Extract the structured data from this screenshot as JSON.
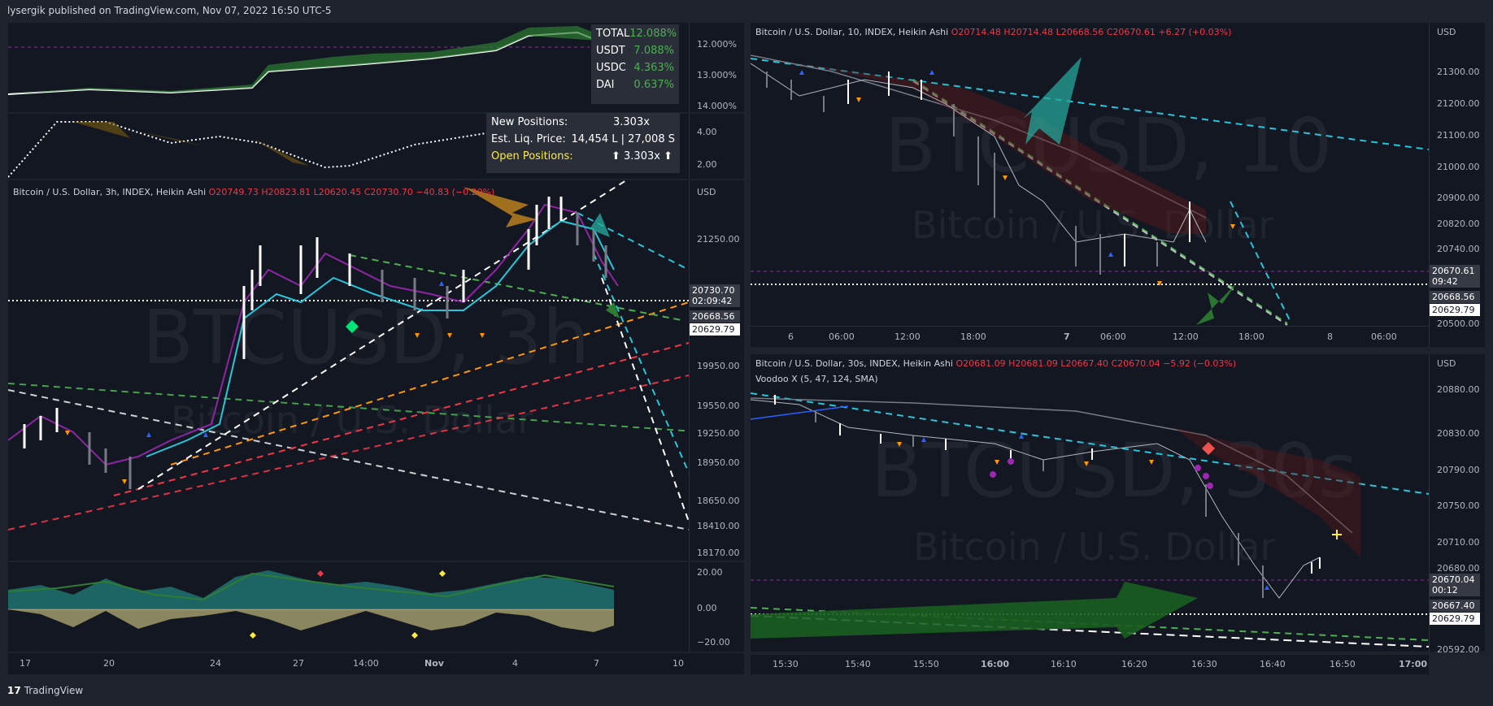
{
  "header": {
    "publisher": "lysergik published on TradingView.com, Nov 07, 2022 16:50 UTC-5"
  },
  "footer": {
    "brand": "TradingView"
  },
  "left": {
    "dominance_table": [
      {
        "name": "TOTAL",
        "value": "12.088%"
      },
      {
        "name": "USDT",
        "value": "7.088%"
      },
      {
        "name": "USDC",
        "value": "4.363%"
      },
      {
        "name": "DAI",
        "value": "0.637%"
      }
    ],
    "dominance_axis": [
      "12.000%",
      "13.000%",
      "14.000%"
    ],
    "osc_axis": [
      "4.00",
      "2.00"
    ],
    "positions": {
      "new_label": "New Positions:",
      "new_value": "3.303x",
      "liq_label": "Est. Liq. Price:",
      "liq_value": "14,454 L | 27,008 S",
      "open_label": "Open Positions:",
      "open_value": "⬆ 3.303x ⬆"
    },
    "main": {
      "title": "Bitcoin / U.S. Dollar, 3h, INDEX, Heikin Ashi",
      "o": "O20749.73",
      "h": "H20823.81",
      "l": "L20620.45",
      "c": "C20730.70",
      "chg": "−40.83 (−0.20%)",
      "currency": "USD",
      "watermark_1": "BTCUSD, 3h",
      "watermark_2": "Bitcoin / U.S. Dollar",
      "price_axis": [
        "21250.00",
        "19950.00",
        "19550.00",
        "19250.00",
        "18950.00",
        "18650.00",
        "18410.00",
        "18170.00"
      ],
      "tag_price": "20730.70",
      "tag_timer": "02:09:42",
      "tag_low": "20668.56",
      "tag_line": "20629.79"
    },
    "osc2_axis": [
      "20.00",
      "0.00",
      "−20.00"
    ],
    "time_axis": [
      "17",
      "20",
      "24",
      "27",
      "14:00",
      "Nov",
      "4",
      "7",
      "10"
    ]
  },
  "right_top": {
    "title": "Bitcoin / U.S. Dollar, 10, INDEX, Heikin Ashi",
    "o": "O20714.48",
    "h": "H20714.48",
    "l": "L20668.56",
    "c": "C20670.61",
    "chg": "+6.27 (+0.03%)",
    "currency": "USD",
    "watermark_1": "BTCUSD, 10",
    "watermark_2": "Bitcoin / U.S. Dollar",
    "price_axis": [
      "21300.00",
      "21200.00",
      "21100.00",
      "21000.00",
      "20900.00",
      "20820.00",
      "20740.00",
      "20500.00"
    ],
    "tag_price": "20670.61",
    "tag_timer": "09:42",
    "tag_low": "20668.56",
    "tag_line": "20629.79",
    "time_axis": [
      "6",
      "06:00",
      "12:00",
      "18:00",
      "7",
      "06:00",
      "12:00",
      "18:00",
      "8",
      "06:00"
    ]
  },
  "right_bottom": {
    "title": "Bitcoin / U.S. Dollar, 30s, INDEX, Heikin Ashi",
    "o": "O20681.09",
    "h": "H20681.09",
    "l": "L20667.40",
    "c": "C20670.04",
    "chg": "−5.92 (−0.03%)",
    "indicator": "Voodoo X (5, 47, 124, SMA)",
    "currency": "USD",
    "watermark_1": "BTCUSD, 30s",
    "watermark_2": "Bitcoin / U.S. Dollar",
    "price_axis": [
      "20880.00",
      "20830.00",
      "20790.00",
      "20750.00",
      "20710.00",
      "20680.00",
      "20592.00"
    ],
    "tag_price": "20670.04",
    "tag_timer": "00:12",
    "tag_low": "20667.40",
    "tag_line": "20629.79",
    "time_axis": [
      "15:30",
      "15:40",
      "15:50",
      "16:00",
      "16:10",
      "16:20",
      "16:30",
      "16:40",
      "16:50",
      "17:00"
    ]
  },
  "colors": {
    "bg": "#131722",
    "frame": "#1e222d",
    "up": "#ffffff",
    "down": "#787b86",
    "cyan": "#26c6da",
    "orange": "#ff9800",
    "green": "#4caf50",
    "red": "#f23645",
    "magenta": "#9c27b0"
  }
}
